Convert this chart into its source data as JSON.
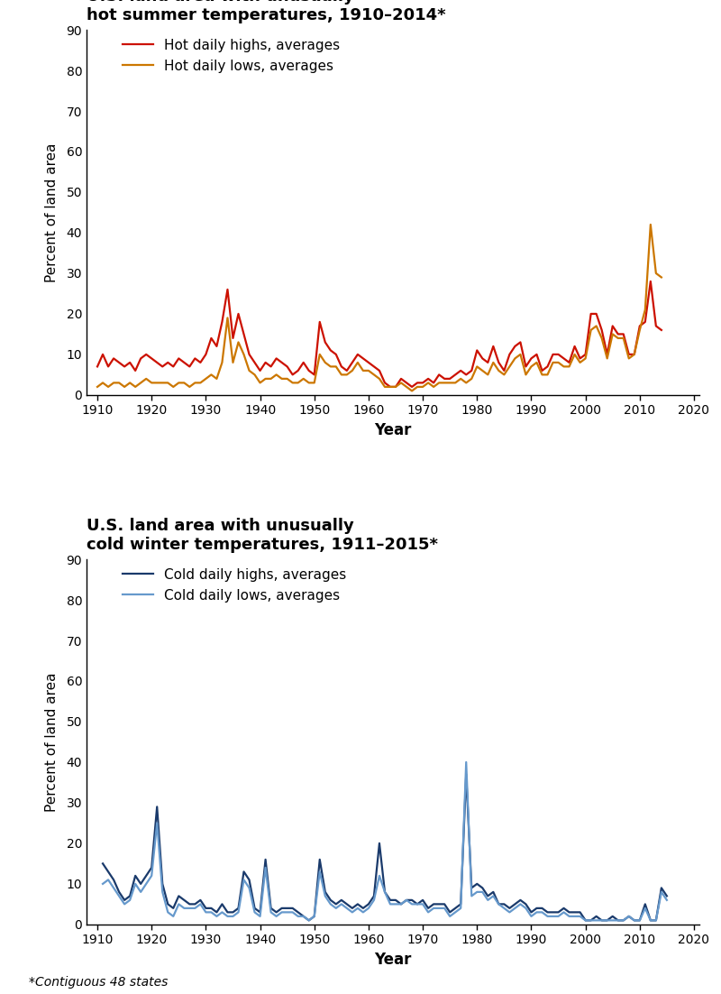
{
  "top_title_line1": "U.S. land area with unusually",
  "top_title_line2": "hot summer temperatures, 1910–2014*",
  "bottom_title_line1": "U.S. land area with unusually",
  "bottom_title_line2": "cold winter temperatures, 1911–2015*",
  "ylabel": "Percent of land area",
  "xlabel": "Year",
  "footnote": "*Contiguous 48 states",
  "hot_highs_years": [
    1910,
    1911,
    1912,
    1913,
    1914,
    1915,
    1916,
    1917,
    1918,
    1919,
    1920,
    1921,
    1922,
    1923,
    1924,
    1925,
    1926,
    1927,
    1928,
    1929,
    1930,
    1931,
    1932,
    1933,
    1934,
    1935,
    1936,
    1937,
    1938,
    1939,
    1940,
    1941,
    1942,
    1943,
    1944,
    1945,
    1946,
    1947,
    1948,
    1949,
    1950,
    1951,
    1952,
    1953,
    1954,
    1955,
    1956,
    1957,
    1958,
    1959,
    1960,
    1961,
    1962,
    1963,
    1964,
    1965,
    1966,
    1967,
    1968,
    1969,
    1970,
    1971,
    1972,
    1973,
    1974,
    1975,
    1976,
    1977,
    1978,
    1979,
    1980,
    1981,
    1982,
    1983,
    1984,
    1985,
    1986,
    1987,
    1988,
    1989,
    1990,
    1991,
    1992,
    1993,
    1994,
    1995,
    1996,
    1997,
    1998,
    1999,
    2000,
    2001,
    2002,
    2003,
    2004,
    2005,
    2006,
    2007,
    2008,
    2009,
    2010,
    2011,
    2012,
    2013,
    2014
  ],
  "hot_highs_values": [
    7,
    10,
    7,
    9,
    8,
    7,
    8,
    6,
    9,
    10,
    9,
    8,
    7,
    8,
    7,
    9,
    8,
    7,
    9,
    8,
    10,
    14,
    12,
    18,
    26,
    14,
    20,
    15,
    10,
    8,
    6,
    8,
    7,
    9,
    8,
    7,
    5,
    6,
    8,
    6,
    5,
    18,
    13,
    11,
    10,
    7,
    6,
    8,
    10,
    9,
    8,
    7,
    6,
    3,
    2,
    2,
    4,
    3,
    2,
    3,
    3,
    4,
    3,
    5,
    4,
    4,
    5,
    6,
    5,
    6,
    11,
    9,
    8,
    12,
    8,
    6,
    10,
    12,
    13,
    7,
    9,
    10,
    6,
    7,
    10,
    10,
    9,
    8,
    12,
    9,
    10,
    20,
    20,
    16,
    10,
    17,
    15,
    15,
    10,
    10,
    17,
    18,
    28,
    17,
    16
  ],
  "hot_lows_years": [
    1910,
    1911,
    1912,
    1913,
    1914,
    1915,
    1916,
    1917,
    1918,
    1919,
    1920,
    1921,
    1922,
    1923,
    1924,
    1925,
    1926,
    1927,
    1928,
    1929,
    1930,
    1931,
    1932,
    1933,
    1934,
    1935,
    1936,
    1937,
    1938,
    1939,
    1940,
    1941,
    1942,
    1943,
    1944,
    1945,
    1946,
    1947,
    1948,
    1949,
    1950,
    1951,
    1952,
    1953,
    1954,
    1955,
    1956,
    1957,
    1958,
    1959,
    1960,
    1961,
    1962,
    1963,
    1964,
    1965,
    1966,
    1967,
    1968,
    1969,
    1970,
    1971,
    1972,
    1973,
    1974,
    1975,
    1976,
    1977,
    1978,
    1979,
    1980,
    1981,
    1982,
    1983,
    1984,
    1985,
    1986,
    1987,
    1988,
    1989,
    1990,
    1991,
    1992,
    1993,
    1994,
    1995,
    1996,
    1997,
    1998,
    1999,
    2000,
    2001,
    2002,
    2003,
    2004,
    2005,
    2006,
    2007,
    2008,
    2009,
    2010,
    2011,
    2012,
    2013,
    2014
  ],
  "hot_lows_values": [
    2,
    3,
    2,
    3,
    3,
    2,
    3,
    2,
    3,
    4,
    3,
    3,
    3,
    3,
    2,
    3,
    3,
    2,
    3,
    3,
    4,
    5,
    4,
    8,
    19,
    8,
    13,
    10,
    6,
    5,
    3,
    4,
    4,
    5,
    4,
    4,
    3,
    3,
    4,
    3,
    3,
    10,
    8,
    7,
    7,
    5,
    5,
    6,
    8,
    6,
    6,
    5,
    4,
    2,
    2,
    2,
    3,
    2,
    1,
    2,
    2,
    3,
    2,
    3,
    3,
    3,
    3,
    4,
    3,
    4,
    7,
    6,
    5,
    8,
    6,
    5,
    7,
    9,
    10,
    5,
    7,
    8,
    5,
    5,
    8,
    8,
    7,
    7,
    10,
    8,
    9,
    16,
    17,
    14,
    9,
    15,
    14,
    14,
    9,
    10,
    16,
    21,
    42,
    30,
    29
  ],
  "cold_highs_years": [
    1911,
    1912,
    1913,
    1914,
    1915,
    1916,
    1917,
    1918,
    1919,
    1920,
    1921,
    1922,
    1923,
    1924,
    1925,
    1926,
    1927,
    1928,
    1929,
    1930,
    1931,
    1932,
    1933,
    1934,
    1935,
    1936,
    1937,
    1938,
    1939,
    1940,
    1941,
    1942,
    1943,
    1944,
    1945,
    1946,
    1947,
    1948,
    1949,
    1950,
    1951,
    1952,
    1953,
    1954,
    1955,
    1956,
    1957,
    1958,
    1959,
    1960,
    1961,
    1962,
    1963,
    1964,
    1965,
    1966,
    1967,
    1968,
    1969,
    1970,
    1971,
    1972,
    1973,
    1974,
    1975,
    1976,
    1977,
    1978,
    1979,
    1980,
    1981,
    1982,
    1983,
    1984,
    1985,
    1986,
    1987,
    1988,
    1989,
    1990,
    1991,
    1992,
    1993,
    1994,
    1995,
    1996,
    1997,
    1998,
    1999,
    2000,
    2001,
    2002,
    2003,
    2004,
    2005,
    2006,
    2007,
    2008,
    2009,
    2010,
    2011,
    2012,
    2013,
    2014,
    2015
  ],
  "cold_highs_values": [
    15,
    13,
    11,
    8,
    6,
    7,
    12,
    10,
    12,
    14,
    29,
    10,
    5,
    4,
    7,
    6,
    5,
    5,
    6,
    4,
    4,
    3,
    5,
    3,
    3,
    4,
    13,
    11,
    4,
    3,
    16,
    4,
    3,
    4,
    4,
    4,
    3,
    2,
    1,
    2,
    16,
    8,
    6,
    5,
    6,
    5,
    4,
    5,
    4,
    5,
    7,
    20,
    8,
    6,
    6,
    5,
    6,
    6,
    5,
    6,
    4,
    5,
    5,
    5,
    3,
    4,
    5,
    37,
    9,
    10,
    9,
    7,
    8,
    5,
    5,
    4,
    5,
    6,
    5,
    3,
    4,
    4,
    3,
    3,
    3,
    4,
    3,
    3,
    3,
    1,
    1,
    2,
    1,
    1,
    2,
    1,
    1,
    2,
    1,
    1,
    5,
    1,
    1,
    9,
    7
  ],
  "cold_lows_years": [
    1911,
    1912,
    1913,
    1914,
    1915,
    1916,
    1917,
    1918,
    1919,
    1920,
    1921,
    1922,
    1923,
    1924,
    1925,
    1926,
    1927,
    1928,
    1929,
    1930,
    1931,
    1932,
    1933,
    1934,
    1935,
    1936,
    1937,
    1938,
    1939,
    1940,
    1941,
    1942,
    1943,
    1944,
    1945,
    1946,
    1947,
    1948,
    1949,
    1950,
    1951,
    1952,
    1953,
    1954,
    1955,
    1956,
    1957,
    1958,
    1959,
    1960,
    1961,
    1962,
    1963,
    1964,
    1965,
    1966,
    1967,
    1968,
    1969,
    1970,
    1971,
    1972,
    1973,
    1974,
    1975,
    1976,
    1977,
    1978,
    1979,
    1980,
    1981,
    1982,
    1983,
    1984,
    1985,
    1986,
    1987,
    1988,
    1989,
    1990,
    1991,
    1992,
    1993,
    1994,
    1995,
    1996,
    1997,
    1998,
    1999,
    2000,
    2001,
    2002,
    2003,
    2004,
    2005,
    2006,
    2007,
    2008,
    2009,
    2010,
    2011,
    2012,
    2013,
    2014,
    2015
  ],
  "cold_lows_values": [
    10,
    11,
    9,
    7,
    5,
    6,
    10,
    8,
    10,
    12,
    25,
    8,
    3,
    2,
    5,
    4,
    4,
    4,
    5,
    3,
    3,
    2,
    3,
    2,
    2,
    3,
    11,
    9,
    3,
    2,
    14,
    3,
    2,
    3,
    3,
    3,
    2,
    2,
    1,
    2,
    13,
    7,
    5,
    4,
    5,
    4,
    3,
    4,
    3,
    4,
    6,
    12,
    8,
    5,
    5,
    5,
    6,
    5,
    5,
    5,
    3,
    4,
    4,
    4,
    2,
    3,
    4,
    40,
    7,
    8,
    8,
    6,
    7,
    5,
    4,
    3,
    4,
    5,
    4,
    2,
    3,
    3,
    2,
    2,
    2,
    3,
    2,
    2,
    2,
    1,
    1,
    1,
    1,
    1,
    1,
    1,
    1,
    2,
    1,
    1,
    4,
    1,
    1,
    8,
    6
  ],
  "hot_highs_color": "#cc1100",
  "hot_lows_color": "#cc7700",
  "cold_highs_color": "#1a3a6b",
  "cold_lows_color": "#6699cc",
  "ylim": [
    0,
    90
  ],
  "yticks": [
    0,
    10,
    20,
    30,
    40,
    50,
    60,
    70,
    80,
    90
  ],
  "xlim": [
    1908,
    2021
  ],
  "xticks": [
    1910,
    1920,
    1930,
    1940,
    1950,
    1960,
    1970,
    1980,
    1990,
    2000,
    2010,
    2020
  ]
}
